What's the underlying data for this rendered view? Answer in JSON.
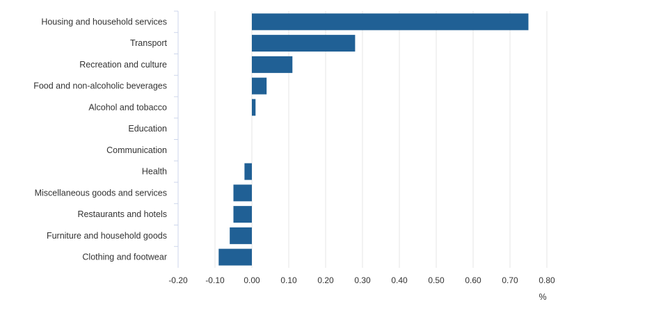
{
  "chart_data": {
    "type": "bar",
    "orientation": "horizontal",
    "categories": [
      "Housing and household services",
      "Transport",
      "Recreation and culture",
      "Food and non-alcoholic beverages",
      "Alcohol and tobacco",
      "Education",
      "Communication",
      "Health",
      "Miscellaneous goods and services",
      "Restaurants and hotels",
      "Furniture and household goods",
      "Clothing and footwear"
    ],
    "values": [
      0.75,
      0.28,
      0.11,
      0.04,
      0.01,
      0.0,
      0.0,
      -0.02,
      -0.05,
      -0.05,
      -0.06,
      -0.09
    ],
    "xlim": [
      -0.2,
      0.8
    ],
    "ticks": [
      "-0.20",
      "-0.10",
      "0.00",
      "0.10",
      "0.20",
      "0.30",
      "0.40",
      "0.50",
      "0.60",
      "0.70",
      "0.80"
    ],
    "tick_values": [
      -0.2,
      -0.1,
      0.0,
      0.1,
      0.2,
      0.3,
      0.4,
      0.5,
      0.6,
      0.7,
      0.8
    ],
    "unit_label": "%",
    "grid": true,
    "bar_color": "#206095"
  }
}
